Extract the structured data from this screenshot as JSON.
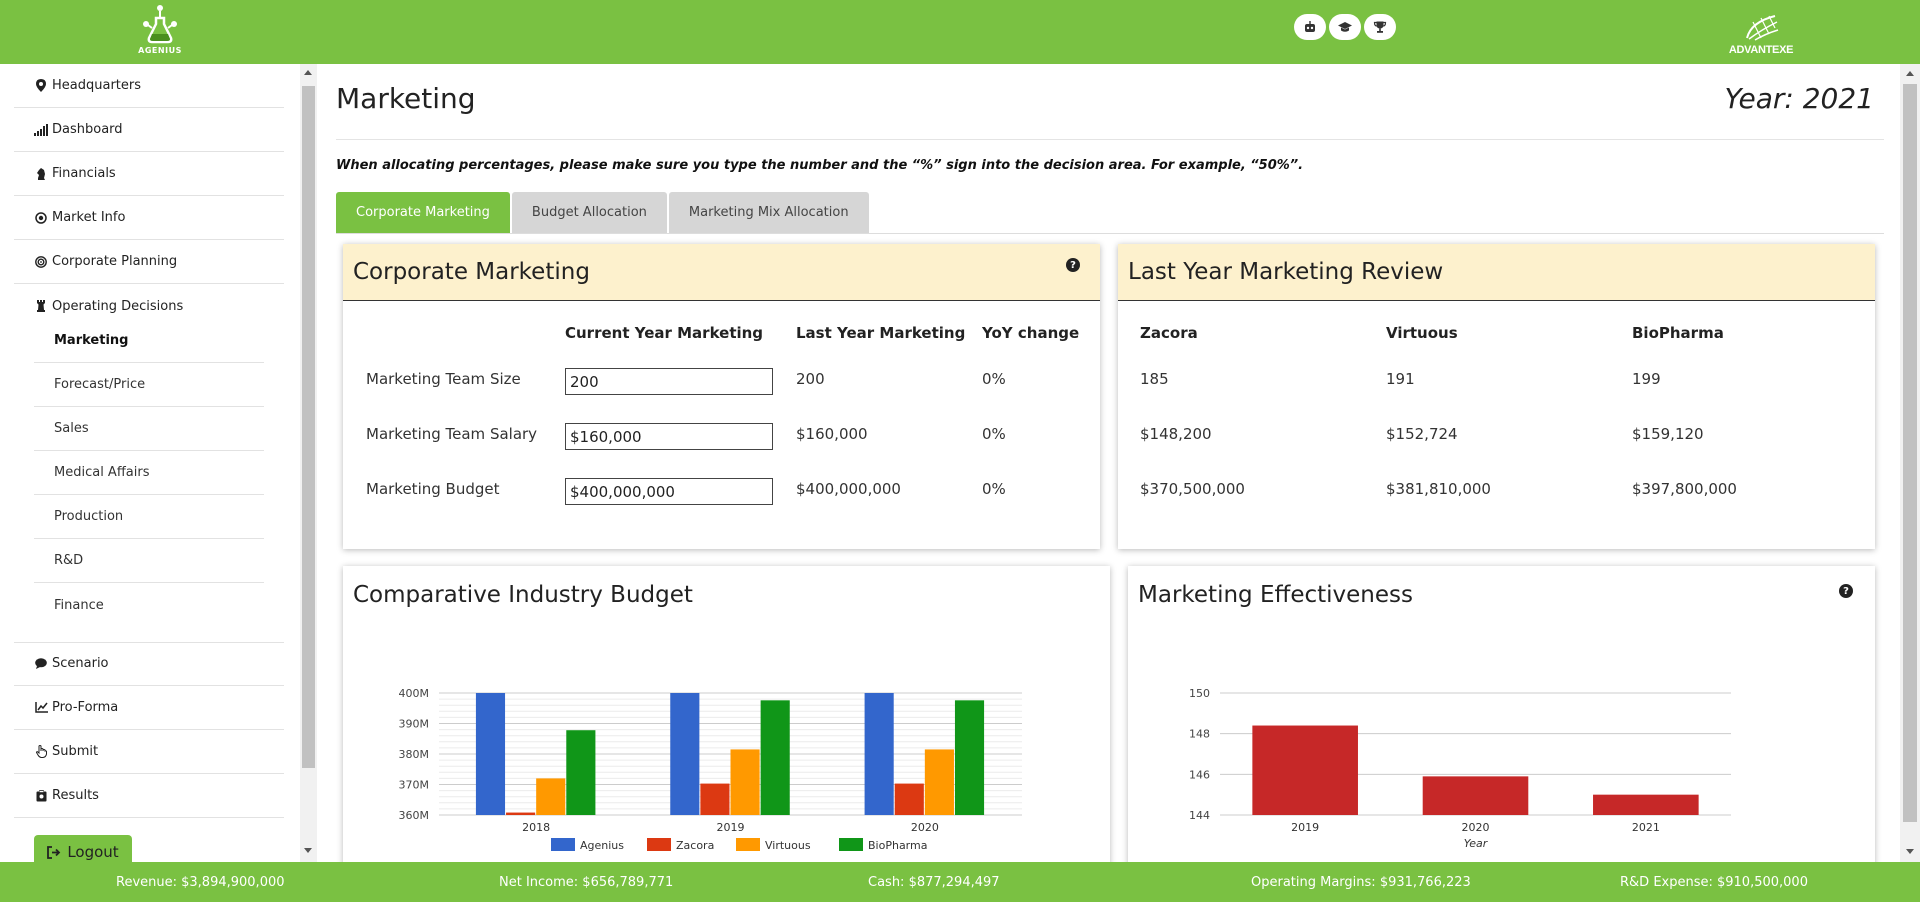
{
  "brand": {
    "left_logo": "AGENIUS",
    "right_logo": "ADVANTEXE"
  },
  "top_icons": [
    "robot-icon",
    "graduation-cap-icon",
    "trophy-icon"
  ],
  "sidebar": {
    "items": [
      {
        "label": "Headquarters",
        "icon": "map-pin-icon"
      },
      {
        "label": "Dashboard",
        "icon": "signal-bars-icon"
      },
      {
        "label": "Financials",
        "icon": "chess-knight-icon"
      },
      {
        "label": "Market Info",
        "icon": "dot-circle-icon"
      },
      {
        "label": "Corporate Planning",
        "icon": "bullseye-icon"
      },
      {
        "label": "Operating Decisions",
        "icon": "chess-rook-icon"
      }
    ],
    "sub_items": [
      "Marketing",
      "Forecast/Price",
      "Sales",
      "Medical Affairs",
      "Production",
      "R&D",
      "Finance"
    ],
    "bottom_items": [
      {
        "label": "Scenario",
        "icon": "comment-icon"
      },
      {
        "label": "Pro-Forma",
        "icon": "line-chart-icon"
      },
      {
        "label": "Submit",
        "icon": "hand-pointer-icon"
      },
      {
        "label": "Results",
        "icon": "clipboard-icon"
      }
    ],
    "logout": "Logout"
  },
  "page": {
    "title": "Marketing",
    "year": "Year: 2021",
    "note": "When allocating percentages, please make sure you type the number and the “%” sign into the decision area. For example, “50%”."
  },
  "tabs": [
    "Corporate Marketing",
    "Budget Allocation",
    "Marketing Mix Allocation"
  ],
  "corporate_marketing": {
    "title": "Corporate Marketing",
    "headers": [
      "Current Year Marketing",
      "Last Year Marketing",
      "YoY change"
    ],
    "rows": [
      {
        "label": "Marketing Team Size",
        "current": "200",
        "last": "200",
        "yoy": "0%"
      },
      {
        "label": "Marketing Team Salary",
        "current": "$160,000",
        "last": "$160,000",
        "yoy": "0%"
      },
      {
        "label": "Marketing Budget",
        "current": "$400,000,000",
        "last": "$400,000,000",
        "yoy": "0%"
      }
    ]
  },
  "review": {
    "title": "Last Year Marketing Review",
    "headers": [
      "Zacora",
      "Virtuous",
      "BioPharma"
    ],
    "rows": [
      [
        "185",
        "191",
        "199"
      ],
      [
        "$148,200",
        "$152,724",
        "$159,120"
      ],
      [
        "$370,500,000",
        "$381,810,000",
        "$397,800,000"
      ]
    ]
  },
  "chart_data": [
    {
      "type": "bar",
      "title": "Comparative Industry Budget",
      "categories": [
        "2018",
        "2019",
        "2020"
      ],
      "series": [
        {
          "name": "Agenius",
          "color": "#3366cc",
          "values": [
            400,
            400,
            400
          ]
        },
        {
          "name": "Zacora",
          "color": "#dc3912",
          "values": [
            360.8,
            370.3,
            370.3
          ]
        },
        {
          "name": "Virtuous",
          "color": "#ff9900",
          "values": [
            372,
            381.5,
            381.5
          ]
        },
        {
          "name": "BioPharma",
          "color": "#109618",
          "values": [
            387.8,
            397.6,
            397.6
          ]
        }
      ],
      "ylim": [
        360,
        400
      ],
      "yticks": [
        "360M",
        "370M",
        "380M",
        "390M",
        "400M"
      ],
      "legend": "bottom",
      "grid": true
    },
    {
      "type": "bar",
      "title": "Marketing Effectiveness",
      "categories": [
        "2019",
        "2020",
        "2021"
      ],
      "series": [
        {
          "color": "#c62828",
          "values": [
            148.4,
            145.9,
            145
          ]
        }
      ],
      "xlabel": "Year",
      "ylim": [
        144,
        150
      ],
      "yticks": [
        "144",
        "146",
        "148",
        "150"
      ],
      "grid": true
    }
  ],
  "footer": {
    "revenue": "Revenue: $3,894,900,000",
    "net_income": "Net Income: $656,789,771",
    "cash": "Cash: $877,294,497",
    "operating_margins": "Operating Margins: $931,766,223",
    "rd_expense": "R&D Expense: $910,500,000"
  }
}
